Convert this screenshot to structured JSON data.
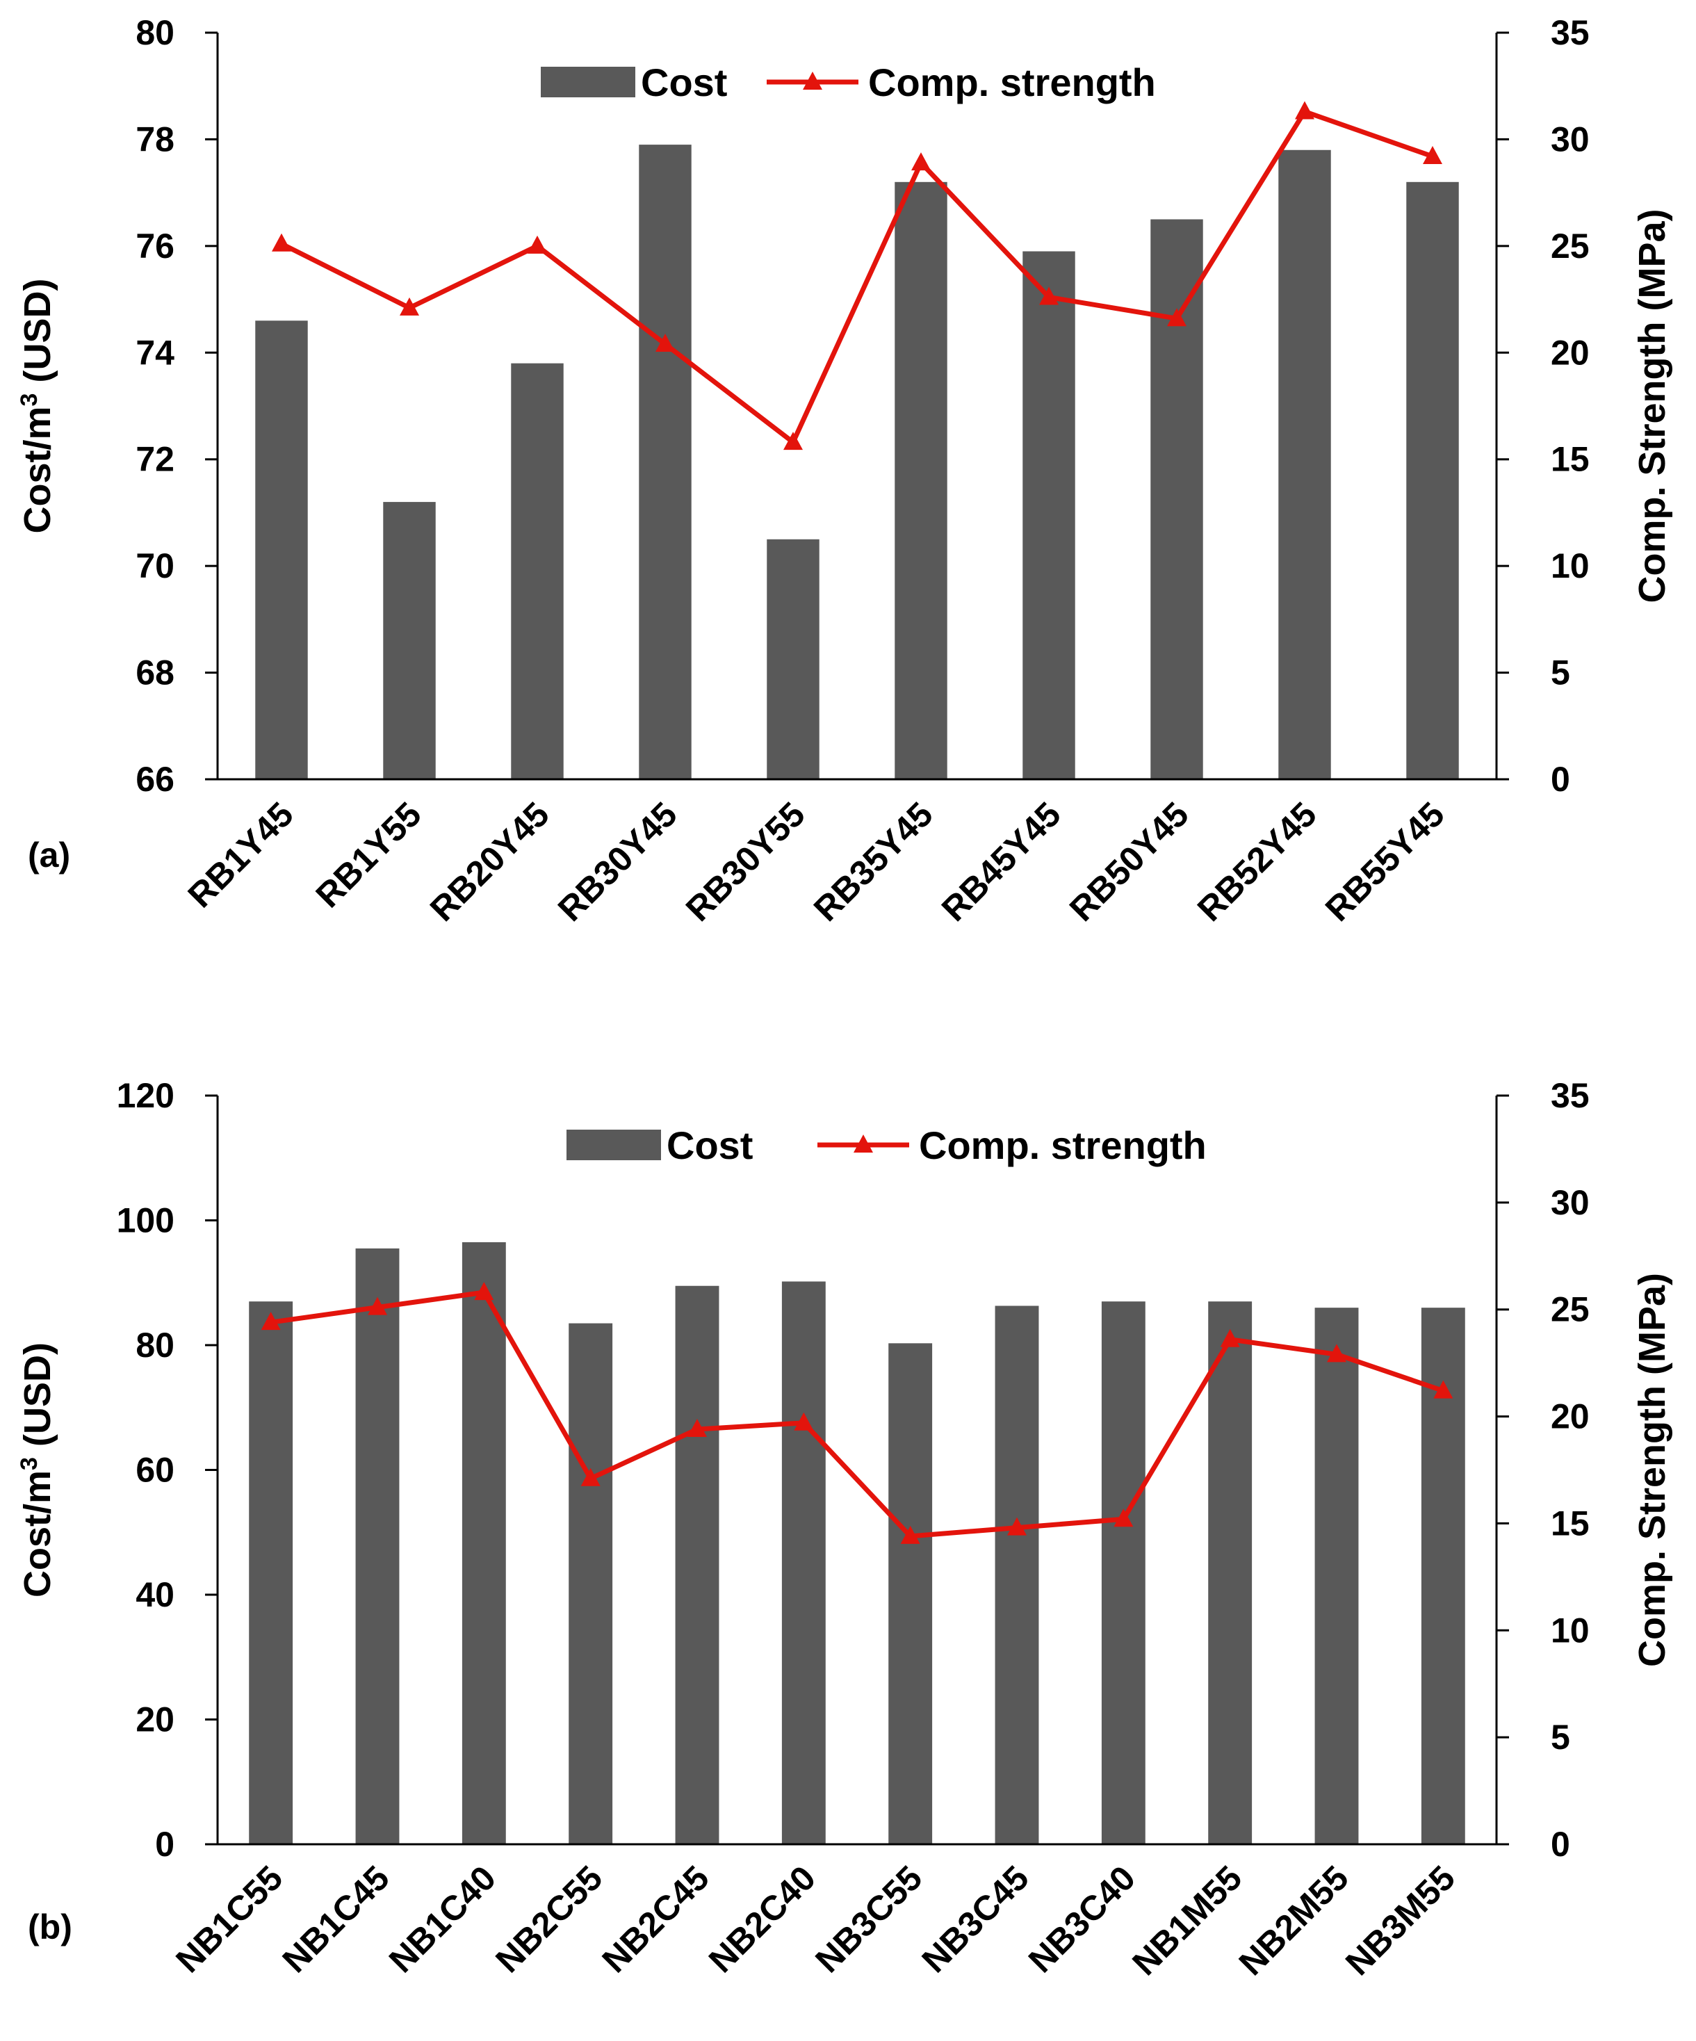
{
  "colors": {
    "bar": "#595959",
    "line": "#e3140c",
    "axis": "#000000"
  },
  "chart_data": [
    {
      "type": "bar",
      "panel_label": "(a)",
      "categories": [
        "RB1Y45",
        "RB1Y55",
        "RB20Y45",
        "RB30Y45",
        "RB30Y55",
        "RB35Y45",
        "RB45Y45",
        "RB50Y45",
        "RB52Y45",
        "RB55Y45"
      ],
      "series": [
        {
          "name": "Cost",
          "type": "bar",
          "axis": "left",
          "values": [
            74.6,
            71.2,
            73.8,
            77.9,
            70.5,
            77.2,
            75.9,
            76.5,
            77.8,
            77.2
          ]
        },
        {
          "name": "Comp. strength",
          "type": "line",
          "axis": "right",
          "values": [
            25.1,
            22.1,
            25.0,
            20.4,
            15.8,
            28.9,
            22.6,
            21.6,
            31.3,
            29.2
          ]
        }
      ],
      "ylabel_prefix": "Cost/m",
      "ylabel_sup": "3",
      "ylabel_suffix": " (USD)",
      "y2label": "Comp. Strength (MPa)",
      "ylim": [
        66,
        80
      ],
      "yticks": [
        "66",
        "68",
        "70",
        "72",
        "74",
        "76",
        "78",
        "80"
      ],
      "y2lim": [
        0,
        35
      ],
      "y2ticks": [
        "0",
        "5",
        "10",
        "15",
        "20",
        "25",
        "30",
        "35"
      ],
      "legend": {
        "position": "top-center",
        "labels": [
          "Cost",
          "Comp. strength"
        ]
      },
      "grid": false
    },
    {
      "type": "bar",
      "panel_label": "(b)",
      "categories": [
        "NB1C55",
        "NB1C45",
        "NB1C40",
        "NB2C55",
        "NB2C45",
        "NB2C40",
        "NB3C55",
        "NB3C45",
        "NB3C40",
        "NB1M55",
        "NB2M55",
        "NB3M55"
      ],
      "series": [
        {
          "name": "Cost",
          "type": "bar",
          "axis": "left",
          "values": [
            87,
            95.5,
            96.5,
            83.5,
            89.5,
            90.2,
            80.3,
            86.3,
            87,
            87,
            86,
            86
          ]
        },
        {
          "name": "Comp. strength",
          "type": "line",
          "axis": "right",
          "values": [
            24.4,
            25.1,
            25.8,
            17.1,
            19.4,
            19.7,
            14.4,
            14.8,
            15.2,
            23.6,
            22.9,
            21.2
          ]
        }
      ],
      "ylabel_prefix": "Cost/m",
      "ylabel_sup": "3",
      "ylabel_suffix": " (USD)",
      "y2label": "Comp. Strength (MPa)",
      "ylim": [
        0,
        120
      ],
      "yticks": [
        "0",
        "20",
        "40",
        "60",
        "80",
        "100",
        "120"
      ],
      "y2lim": [
        0,
        35
      ],
      "y2ticks": [
        "0",
        "5",
        "10",
        "15",
        "20",
        "25",
        "30",
        "35"
      ],
      "legend": {
        "position": "top-center",
        "labels": [
          "Cost",
          "Comp. strength"
        ]
      },
      "grid": false
    }
  ]
}
